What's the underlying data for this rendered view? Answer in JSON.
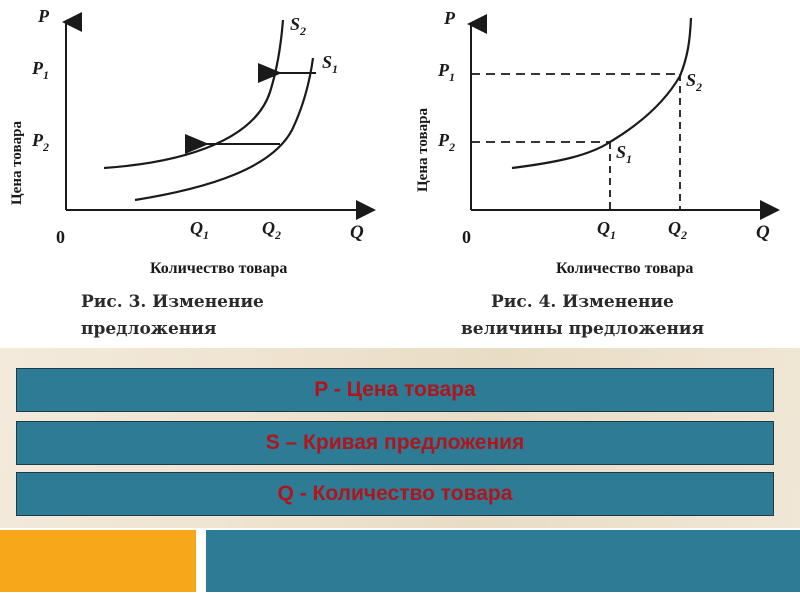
{
  "figure_left": {
    "axis_price": "P",
    "axis_quantity": "Q",
    "origin": "0",
    "price_levels": [
      "P",
      "P"
    ],
    "price_subs": [
      "1",
      "2"
    ],
    "quantity_levels": [
      "Q",
      "Q"
    ],
    "quantity_subs": [
      "1",
      "2"
    ],
    "curve_labels": [
      "S",
      "S"
    ],
    "curve_subs": [
      "2",
      "1"
    ],
    "y_label": "Цена товара",
    "x_label": "Количество товара",
    "caption_line1": "Рис. 3. Изменение",
    "caption_line2": "предложения"
  },
  "figure_right": {
    "axis_price": "P",
    "axis_quantity": "Q",
    "origin": "0",
    "price_levels": [
      "P",
      "P"
    ],
    "price_subs": [
      "1",
      "2"
    ],
    "quantity_levels": [
      "Q",
      "Q"
    ],
    "quantity_subs": [
      "1",
      "2"
    ],
    "point_labels": [
      "S",
      "S"
    ],
    "point_subs": [
      "2",
      "1"
    ],
    "y_label": "Цена товара",
    "x_label": "Количество товара",
    "caption_line1": "Рис. 4. Изменение",
    "caption_line2": "величины предложения"
  },
  "legend": [
    "P - Цена товара",
    "S – Кривая предложения",
    "Q - Количество товара"
  ],
  "colors": {
    "legend_fill": "#2e7b95",
    "legend_text": "#b0151b",
    "footer_orange": "#f6a81a",
    "footer_teal": "#2e7b95"
  }
}
